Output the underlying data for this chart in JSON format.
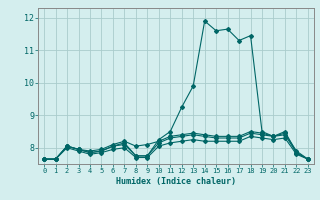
{
  "xlabel": "Humidex (Indice chaleur)",
  "background_color": "#d4eeee",
  "grid_color": "#aacccc",
  "line_color": "#006666",
  "xlim": [
    -0.5,
    23.5
  ],
  "ylim": [
    7.5,
    12.3
  ],
  "yticks": [
    8,
    9,
    10,
    11,
    12
  ],
  "xticks": [
    0,
    1,
    2,
    3,
    4,
    5,
    6,
    7,
    8,
    9,
    10,
    11,
    12,
    13,
    14,
    15,
    16,
    17,
    18,
    19,
    20,
    21,
    22,
    23
  ],
  "series": [
    [
      7.65,
      7.65,
      8.05,
      7.95,
      7.85,
      7.9,
      8.05,
      8.15,
      7.75,
      7.75,
      8.25,
      8.5,
      9.25,
      9.9,
      11.9,
      11.6,
      11.65,
      11.3,
      11.45,
      8.5,
      8.35,
      8.5,
      7.85,
      7.65
    ],
    [
      7.65,
      7.65,
      8.05,
      7.95,
      7.9,
      7.95,
      8.1,
      8.2,
      8.05,
      8.1,
      8.2,
      8.35,
      8.4,
      8.45,
      8.4,
      8.35,
      8.35,
      8.35,
      8.5,
      8.45,
      8.35,
      8.45,
      7.9,
      7.65
    ],
    [
      7.65,
      7.65,
      8.05,
      7.95,
      7.85,
      7.9,
      8.05,
      8.1,
      7.75,
      7.75,
      8.15,
      8.3,
      8.35,
      8.4,
      8.35,
      8.3,
      8.3,
      8.3,
      8.45,
      8.4,
      8.35,
      8.4,
      7.85,
      7.65
    ],
    [
      7.65,
      7.65,
      8.0,
      7.9,
      7.8,
      7.85,
      7.95,
      8.0,
      7.7,
      7.7,
      8.05,
      8.15,
      8.2,
      8.25,
      8.2,
      8.2,
      8.2,
      8.2,
      8.35,
      8.3,
      8.25,
      8.3,
      7.8,
      7.65
    ]
  ]
}
